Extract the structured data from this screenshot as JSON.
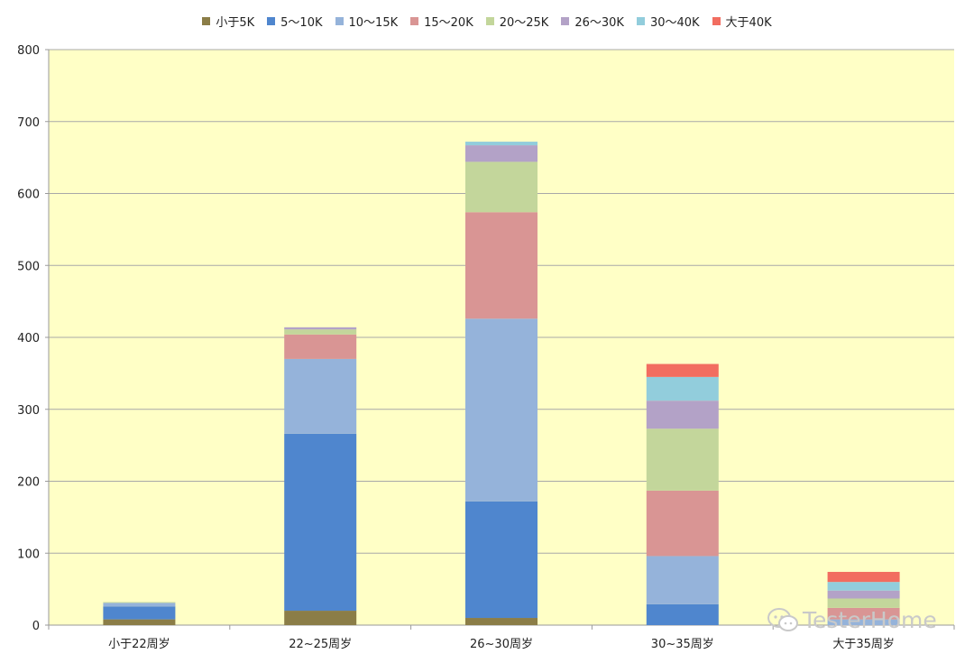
{
  "colors": {
    "plot_background": "#FFFFC6",
    "grid": "#A8A8A8",
    "axis": "#9a9a9a"
  },
  "legend": [
    {
      "label": "小于5K",
      "color": "#8B7D47"
    },
    {
      "label": "5～10K",
      "color": "#4F86CE"
    },
    {
      "label": "10～15K",
      "color": "#95B3DA"
    },
    {
      "label": "15～20K",
      "color": "#D99594"
    },
    {
      "label": "20～25K",
      "color": "#C3D69B"
    },
    {
      "label": "26～30K",
      "color": "#B3A2C7"
    },
    {
      "label": "30～40K",
      "color": "#92CDDC"
    },
    {
      "label": "大于40K",
      "color": "#F26D60"
    }
  ],
  "chart_data": {
    "type": "bar",
    "stacked": true,
    "title": "",
    "xlabel": "",
    "ylabel": "",
    "ylim": [
      0,
      800
    ],
    "yticks": [
      0,
      100,
      200,
      300,
      400,
      500,
      600,
      700,
      800
    ],
    "grid": true,
    "legend_position": "top",
    "categories": [
      "小于22周岁",
      "22~25周岁",
      "26~30周岁",
      "30~35周岁",
      "大于35周岁"
    ],
    "series": [
      {
        "name": "小于5K",
        "values": [
          8,
          20,
          10,
          0,
          0
        ]
      },
      {
        "name": "5～10K",
        "values": [
          18,
          246,
          162,
          29,
          0
        ]
      },
      {
        "name": "10～15K",
        "values": [
          5,
          104,
          254,
          67,
          8
        ]
      },
      {
        "name": "15～20K",
        "values": [
          0,
          34,
          148,
          91,
          16
        ]
      },
      {
        "name": "20～25K",
        "values": [
          1,
          7,
          70,
          86,
          13
        ]
      },
      {
        "name": "26～30K",
        "values": [
          0,
          3,
          23,
          39,
          11
        ]
      },
      {
        "name": "30～40K",
        "values": [
          0,
          0,
          5,
          33,
          12
        ]
      },
      {
        "name": "大于40K",
        "values": [
          0,
          0,
          0,
          18,
          14
        ]
      }
    ]
  },
  "watermark": {
    "text": "TesterHome"
  }
}
